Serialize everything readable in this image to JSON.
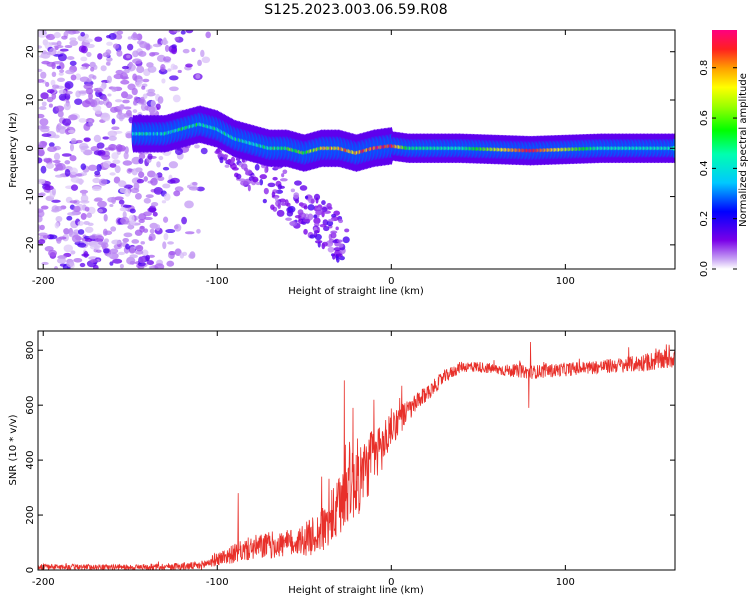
{
  "figure": {
    "title": "S125.2023.003.06.59.R08"
  },
  "colors": {
    "snr_line": "#e8302a",
    "frame": "#000000",
    "background": "#ffffff"
  },
  "chart_data": [
    {
      "type": "heatmap",
      "xlabel": "Height of straight line (km)",
      "ylabel": "Frequency (Hz)",
      "xlim": [
        -203,
        163
      ],
      "ylim": [
        -25,
        24.5
      ],
      "xticks": [
        -200,
        -100,
        0,
        100
      ],
      "yticks": [
        -20,
        -10,
        0,
        10,
        20
      ],
      "colorbar": {
        "label": "Normalized spectral amplitude",
        "range": [
          0,
          0.95
        ],
        "ticks": [
          0.0,
          0.2,
          0.4,
          0.6,
          0.8
        ],
        "colormap": "rainbow (violet-blue-cyan-green-yellow-orange-red-magenta)"
      },
      "ridge": {
        "description": "dominant frequency track",
        "x": [
          -145,
          -130,
          -120,
          -110,
          -100,
          -90,
          -80,
          -70,
          -60,
          -50,
          -40,
          -30,
          -20,
          -10,
          0,
          10,
          40,
          80,
          120,
          160
        ],
        "y": [
          3,
          3,
          4,
          5,
          4,
          2,
          1,
          0,
          0,
          -1,
          0,
          0,
          -1,
          0,
          0.5,
          0,
          0,
          -0.5,
          0,
          0
        ],
        "amplitude": [
          0.4,
          0.4,
          0.45,
          0.5,
          0.45,
          0.4,
          0.45,
          0.5,
          0.55,
          0.6,
          0.7,
          0.75,
          0.8,
          0.85,
          0.9,
          0.5,
          0.45,
          0.9,
          0.45,
          0.45
        ]
      },
      "noise_region_x": [
        -203,
        -105
      ]
    },
    {
      "type": "line",
      "xlabel": "Height of straight line (km)",
      "ylabel": "SNR (10 * v/v)",
      "xlim": [
        -203,
        163
      ],
      "ylim": [
        0,
        870
      ],
      "xticks": [
        -200,
        -100,
        0,
        100
      ],
      "yticks": [
        0,
        200,
        400,
        600,
        800
      ],
      "series": [
        {
          "envelope": {
            "x": [
              -203,
              -150,
              -110,
              -100,
              -90,
              -80,
              -70,
              -60,
              -50,
              -40,
              -30,
              -25,
              -20,
              -15,
              -10,
              -5,
              0,
              10,
              20,
              30,
              40,
              50,
              60,
              80,
              100,
              120,
              140,
              160,
              163
            ],
            "base": [
              12,
              10,
              15,
              40,
              60,
              80,
              90,
              95,
              110,
              140,
              220,
              320,
              330,
              360,
              420,
              450,
              520,
              580,
              640,
              700,
              740,
              740,
              730,
              720,
              730,
              740,
              750,
              770,
              780
            ],
            "amp": [
              10,
              10,
              15,
              25,
              35,
              45,
              50,
              50,
              60,
              80,
              120,
              150,
              150,
              120,
              110,
              90,
              70,
              40,
              30,
              25,
              20,
              20,
              20,
              25,
              25,
              25,
              30,
              40,
              40
            ]
          },
          "spikes": [
            {
              "x": -88,
              "y": 280
            },
            {
              "x": -40,
              "y": 340
            },
            {
              "x": -27,
              "y": 690
            },
            {
              "x": -22,
              "y": 590
            },
            {
              "x": -10,
              "y": 620
            },
            {
              "x": 79,
              "y": 590
            },
            {
              "x": 80,
              "y": 830
            }
          ]
        }
      ]
    }
  ]
}
